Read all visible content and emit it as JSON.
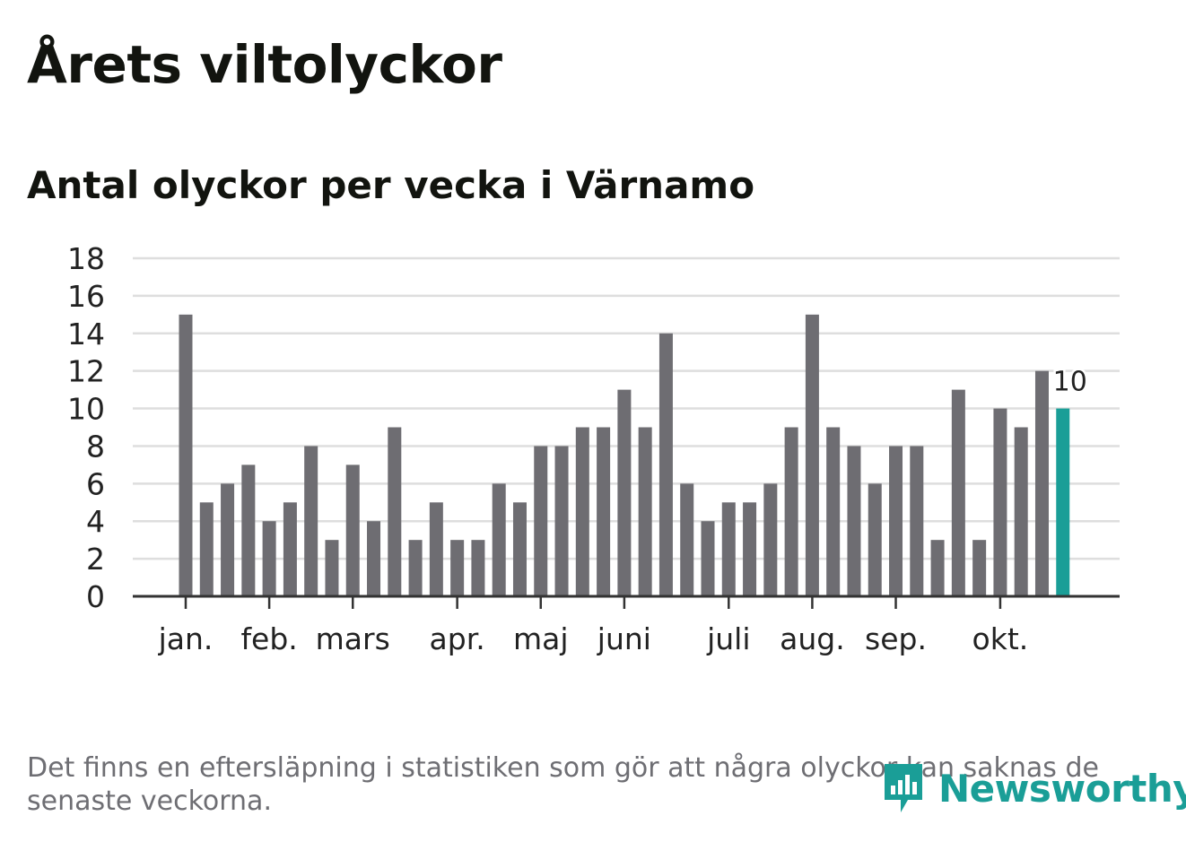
{
  "header": {
    "title": "Årets viltolyckor",
    "subtitle": "Antal olyckor per vecka i Värnamo"
  },
  "footer": {
    "note": "Det finns en eftersläpning i statistiken som gör att några olyckor kan saknas de senaste veckorna.",
    "logo_text": "Newsworthy",
    "logo_icon": "newsworthy-chart-bubble-icon"
  },
  "colors": {
    "bar": "#6e6d72",
    "highlight": "#1a9e97",
    "grid": "#dedede",
    "axis": "#333333",
    "text": "#222222"
  },
  "chart_data": {
    "type": "bar",
    "title": "Antal olyckor per vecka i Värnamo",
    "xlabel": "",
    "ylabel": "",
    "ylim": [
      0,
      18
    ],
    "yticks": [
      0,
      2,
      4,
      6,
      8,
      10,
      12,
      14,
      16,
      18
    ],
    "grid": true,
    "values": [
      15,
      5,
      6,
      7,
      4,
      5,
      8,
      3,
      7,
      4,
      9,
      3,
      5,
      3,
      3,
      6,
      5,
      8,
      8,
      9,
      9,
      11,
      9,
      14,
      6,
      4,
      5,
      5,
      6,
      9,
      15,
      9,
      8,
      6,
      8,
      8,
      3,
      11,
      3,
      10,
      9,
      12,
      10
    ],
    "month_labels": [
      {
        "label": "jan.",
        "week": 0
      },
      {
        "label": "feb.",
        "week": 4
      },
      {
        "label": "mars",
        "week": 8
      },
      {
        "label": "apr.",
        "week": 13
      },
      {
        "label": "maj",
        "week": 17
      },
      {
        "label": "juni",
        "week": 21
      },
      {
        "label": "juli",
        "week": 26
      },
      {
        "label": "aug.",
        "week": 30
      },
      {
        "label": "sep.",
        "week": 34
      },
      {
        "label": "okt.",
        "week": 39
      }
    ],
    "highlight_index": 42,
    "highlight_label": "10"
  }
}
